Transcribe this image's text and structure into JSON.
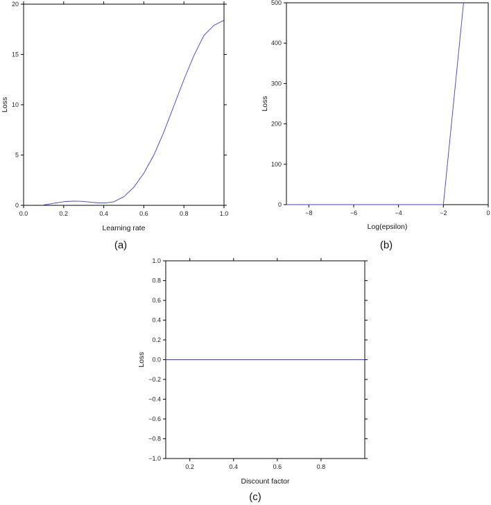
{
  "colors": {
    "series": "#3b3bd6",
    "axis": "#000000"
  },
  "chart_data": [
    {
      "id": "a",
      "type": "line",
      "panel_label": "(a)",
      "title": "",
      "xlabel": "Learning rate",
      "ylabel": "Loss",
      "xlim": [
        0.0,
        1.0
      ],
      "ylim": [
        0,
        20
      ],
      "xticks": [
        0.0,
        0.2,
        0.4,
        0.6,
        0.8,
        1.0
      ],
      "xtick_labels": [
        "0.0",
        "0.2",
        "0.4",
        "0.6",
        "0.8",
        "1.0"
      ],
      "yticks": [
        0,
        5,
        10,
        15,
        20
      ],
      "ytick_labels": [
        "0",
        "5",
        "10",
        "15",
        "20"
      ],
      "grid": false,
      "legend": "none",
      "series": [
        {
          "x": [
            0.09,
            0.12,
            0.15,
            0.18,
            0.21,
            0.25,
            0.29,
            0.33,
            0.37,
            0.41,
            0.45,
            0.5,
            0.55,
            0.6,
            0.65,
            0.7,
            0.75,
            0.8,
            0.85,
            0.9,
            0.95,
            1.0
          ],
          "y": [
            0.0,
            0.1,
            0.2,
            0.3,
            0.38,
            0.42,
            0.4,
            0.32,
            0.25,
            0.24,
            0.35,
            0.85,
            1.8,
            3.2,
            5.0,
            7.3,
            9.9,
            12.5,
            14.9,
            16.9,
            17.9,
            18.4
          ]
        }
      ]
    },
    {
      "id": "b",
      "type": "line",
      "panel_label": "(b)",
      "title": "",
      "xlabel": "Log(epsilon)",
      "ylabel": "Loss",
      "xlim": [
        -9,
        0
      ],
      "ylim": [
        0,
        500
      ],
      "xticks": [
        -8,
        -6,
        -4,
        -2,
        0
      ],
      "xtick_labels": [
        "−8",
        "−6",
        "−4",
        "−2",
        "0"
      ],
      "yticks": [
        0,
        100,
        200,
        300,
        400,
        500
      ],
      "ytick_labels": [
        "0",
        "100",
        "200",
        "300",
        "400",
        "500"
      ],
      "grid": false,
      "legend": "none",
      "series": [
        {
          "x": [
            -9,
            -2,
            -1.1
          ],
          "y": [
            0,
            0,
            500
          ]
        }
      ]
    },
    {
      "id": "c",
      "type": "line",
      "panel_label": "(c)",
      "title": "",
      "xlabel": "Discount factor",
      "ylabel": "Loss",
      "xlim": [
        0.09,
        1.0
      ],
      "ylim": [
        -1.0,
        1.0
      ],
      "xticks": [
        0.2,
        0.4,
        0.6,
        0.8
      ],
      "xtick_labels": [
        "0.2",
        "0.4",
        "0.6",
        "0.8"
      ],
      "yticks": [
        -1.0,
        -0.8,
        -0.6,
        -0.4,
        -0.2,
        0.0,
        0.2,
        0.4,
        0.6,
        0.8,
        1.0
      ],
      "ytick_labels": [
        "−1.0",
        "−0.8",
        "−0.6",
        "−0.4",
        "−0.2",
        "0.0",
        "0.2",
        "0.4",
        "0.6",
        "0.8",
        "1.0"
      ],
      "grid": false,
      "legend": "none",
      "series": [
        {
          "x": [
            0.09,
            1.0
          ],
          "y": [
            0.0,
            0.0
          ]
        }
      ]
    }
  ]
}
